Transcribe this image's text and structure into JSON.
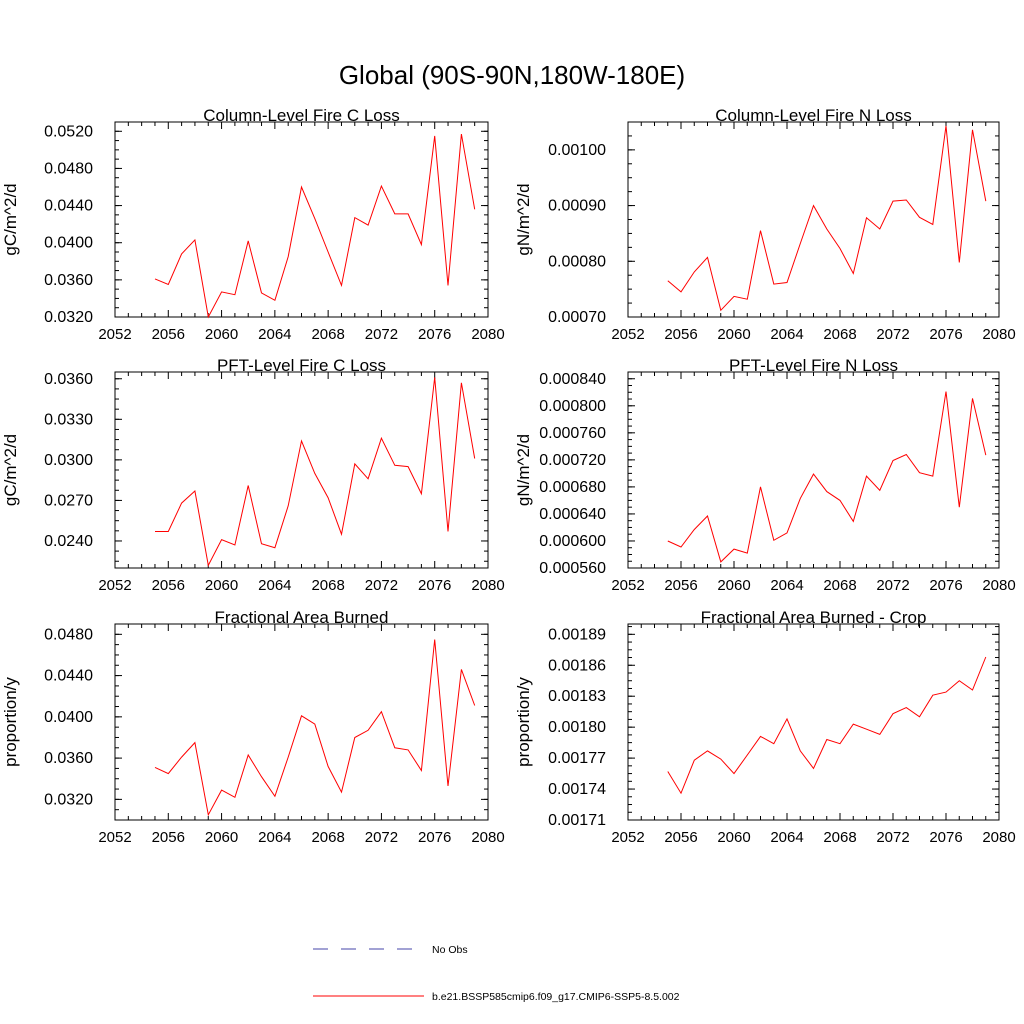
{
  "figure": {
    "title": "Global (90S-90N,180W-180E)",
    "legend": {
      "placement": "bottom",
      "entries": [
        {
          "label": "No Obs",
          "color": "#4444aa",
          "dash": "dashed"
        },
        {
          "label": "b.e21.BSSP585cmip6.f09_g17.CMIP6-SSP5-8.5.002",
          "color": "#ff0000",
          "dash": "solid"
        }
      ]
    }
  },
  "chart_data": [
    {
      "type": "line",
      "title": "Column-Level Fire C Loss",
      "ylabel": "gC/m^2/d",
      "xlabel": "",
      "xlim": [
        2052,
        2080
      ],
      "ylim": [
        0.032,
        0.053
      ],
      "xticks": [
        "2052",
        "2056",
        "2060",
        "2064",
        "2068",
        "2072",
        "2076",
        "2080"
      ],
      "yticks": [
        "0.0320",
        "0.0360",
        "0.0400",
        "0.0440",
        "0.0480",
        "0.0520"
      ],
      "x": [
        2055,
        2056,
        2057,
        2058,
        2059,
        2060,
        2061,
        2062,
        2063,
        2064,
        2065,
        2066,
        2067,
        2068,
        2069,
        2070,
        2071,
        2072,
        2073,
        2074,
        2075,
        2076,
        2077,
        2078,
        2079
      ],
      "series": [
        {
          "name": "b.e21.BSSP585cmip6.f09_g17.CMIP6-SSP5-8.5.002",
          "color": "#ff0000",
          "values": [
            0.0361,
            0.0355,
            0.0388,
            0.0403,
            0.032,
            0.0347,
            0.0344,
            0.0402,
            0.0346,
            0.0338,
            0.0385,
            0.046,
            0.0426,
            0.039,
            0.0354,
            0.0427,
            0.0419,
            0.0461,
            0.0431,
            0.0431,
            0.0398,
            0.0515,
            0.0354,
            0.0517,
            0.0436
          ]
        }
      ],
      "grid": false
    },
    {
      "type": "line",
      "title": "Column-Level Fire N Loss",
      "ylabel": "gN/m^2/d",
      "xlabel": "",
      "xlim": [
        2052,
        2080
      ],
      "ylim": [
        0.0007,
        0.00105
      ],
      "xticks": [
        "2052",
        "2056",
        "2060",
        "2064",
        "2068",
        "2072",
        "2076",
        "2080"
      ],
      "yticks": [
        "0.00070",
        "0.00080",
        "0.00090",
        "0.00100"
      ],
      "x": [
        2055,
        2056,
        2057,
        2058,
        2059,
        2060,
        2061,
        2062,
        2063,
        2064,
        2065,
        2066,
        2067,
        2068,
        2069,
        2070,
        2071,
        2072,
        2073,
        2074,
        2075,
        2076,
        2077,
        2078,
        2079
      ],
      "series": [
        {
          "name": "b.e21.BSSP585cmip6.f09_g17.CMIP6-SSP5-8.5.002",
          "color": "#ff0000",
          "values": [
            0.000765,
            0.000745,
            0.000781,
            0.000807,
            0.000712,
            0.000737,
            0.000732,
            0.000855,
            0.000759,
            0.000762,
            0.000832,
            0.0009,
            0.000858,
            0.000823,
            0.000778,
            0.000878,
            0.000858,
            0.000908,
            0.00091,
            0.000879,
            0.000866,
            0.001043,
            0.000798,
            0.001036,
            0.000908
          ]
        }
      ],
      "grid": false
    },
    {
      "type": "line",
      "title": "PFT-Level Fire C Loss",
      "ylabel": "gC/m^2/d",
      "xlabel": "",
      "xlim": [
        2052,
        2080
      ],
      "ylim": [
        0.022,
        0.0365
      ],
      "xticks": [
        "2052",
        "2056",
        "2060",
        "2064",
        "2068",
        "2072",
        "2076",
        "2080"
      ],
      "yticks": [
        "0.0240",
        "0.0270",
        "0.0300",
        "0.0330",
        "0.0360"
      ],
      "x": [
        2055,
        2056,
        2057,
        2058,
        2059,
        2060,
        2061,
        2062,
        2063,
        2064,
        2065,
        2066,
        2067,
        2068,
        2069,
        2070,
        2071,
        2072,
        2073,
        2074,
        2075,
        2076,
        2077,
        2078,
        2079
      ],
      "series": [
        {
          "name": "b.e21.BSSP585cmip6.f09_g17.CMIP6-SSP5-8.5.002",
          "color": "#ff0000",
          "values": [
            0.0247,
            0.0247,
            0.0268,
            0.0277,
            0.0222,
            0.0241,
            0.0237,
            0.0281,
            0.0238,
            0.0235,
            0.0266,
            0.0314,
            0.029,
            0.0272,
            0.0245,
            0.0297,
            0.0286,
            0.0316,
            0.0296,
            0.0295,
            0.0275,
            0.0361,
            0.0247,
            0.0357,
            0.0301
          ]
        }
      ],
      "grid": false
    },
    {
      "type": "line",
      "title": "PFT-Level Fire N Loss",
      "ylabel": "gN/m^2/d",
      "xlabel": "",
      "xlim": [
        2052,
        2080
      ],
      "ylim": [
        0.00056,
        0.00085
      ],
      "xticks": [
        "2052",
        "2056",
        "2060",
        "2064",
        "2068",
        "2072",
        "2076",
        "2080"
      ],
      "yticks": [
        "0.000560",
        "0.000600",
        "0.000640",
        "0.000680",
        "0.000720",
        "0.000760",
        "0.000800",
        "0.000840"
      ],
      "x": [
        2055,
        2056,
        2057,
        2058,
        2059,
        2060,
        2061,
        2062,
        2063,
        2064,
        2065,
        2066,
        2067,
        2068,
        2069,
        2070,
        2071,
        2072,
        2073,
        2074,
        2075,
        2076,
        2077,
        2078,
        2079
      ],
      "series": [
        {
          "name": "b.e21.BSSP585cmip6.f09_g17.CMIP6-SSP5-8.5.002",
          "color": "#ff0000",
          "values": [
            0.0006,
            0.000591,
            0.000617,
            0.000637,
            0.000569,
            0.000588,
            0.000582,
            0.00068,
            0.000601,
            0.000612,
            0.000663,
            0.000699,
            0.000673,
            0.00066,
            0.000629,
            0.000696,
            0.000675,
            0.000719,
            0.000728,
            0.000701,
            0.000696,
            0.000821,
            0.00065,
            0.000811,
            0.000727
          ]
        }
      ],
      "grid": false
    },
    {
      "type": "line",
      "title": "Fractional Area Burned",
      "ylabel": "proportion/y",
      "xlabel": "",
      "xlim": [
        2052,
        2080
      ],
      "ylim": [
        0.03,
        0.049
      ],
      "xticks": [
        "2052",
        "2056",
        "2060",
        "2064",
        "2068",
        "2072",
        "2076",
        "2080"
      ],
      "yticks": [
        "0.0320",
        "0.0360",
        "0.0400",
        "0.0440",
        "0.0480"
      ],
      "x": [
        2055,
        2056,
        2057,
        2058,
        2059,
        2060,
        2061,
        2062,
        2063,
        2064,
        2065,
        2066,
        2067,
        2068,
        2069,
        2070,
        2071,
        2072,
        2073,
        2074,
        2075,
        2076,
        2077,
        2078,
        2079
      ],
      "series": [
        {
          "name": "b.e21.BSSP585cmip6.f09_g17.CMIP6-SSP5-8.5.002",
          "color": "#ff0000",
          "values": [
            0.0351,
            0.0345,
            0.0361,
            0.0375,
            0.0305,
            0.0329,
            0.0322,
            0.0363,
            0.0342,
            0.0323,
            0.0361,
            0.0401,
            0.0393,
            0.0352,
            0.0327,
            0.038,
            0.0387,
            0.0405,
            0.037,
            0.0368,
            0.0348,
            0.0475,
            0.0333,
            0.0446,
            0.0411
          ]
        }
      ],
      "grid": false
    },
    {
      "type": "line",
      "title": "Fractional Area Burned - Crop",
      "ylabel": "proportion/y",
      "xlabel": "",
      "xlim": [
        2052,
        2080
      ],
      "ylim": [
        0.00171,
        0.0019
      ],
      "xticks": [
        "2052",
        "2056",
        "2060",
        "2064",
        "2068",
        "2072",
        "2076",
        "2080"
      ],
      "yticks": [
        "0.00171",
        "0.00174",
        "0.00177",
        "0.00180",
        "0.00183",
        "0.00186",
        "0.00189"
      ],
      "x": [
        2055,
        2056,
        2057,
        2058,
        2059,
        2060,
        2061,
        2062,
        2063,
        2064,
        2065,
        2066,
        2067,
        2068,
        2069,
        2070,
        2071,
        2072,
        2073,
        2074,
        2075,
        2076,
        2077,
        2078,
        2079
      ],
      "series": [
        {
          "name": "b.e21.BSSP585cmip6.f09_g17.CMIP6-SSP5-8.5.002",
          "color": "#ff0000",
          "values": [
            0.001757,
            0.001736,
            0.001768,
            0.001777,
            0.001769,
            0.001755,
            0.001773,
            0.001791,
            0.001784,
            0.001808,
            0.001777,
            0.00176,
            0.001788,
            0.001784,
            0.001803,
            0.001798,
            0.001793,
            0.001813,
            0.001819,
            0.00181,
            0.001831,
            0.001834,
            0.001845,
            0.001836,
            0.001868
          ]
        }
      ],
      "grid": false
    }
  ]
}
